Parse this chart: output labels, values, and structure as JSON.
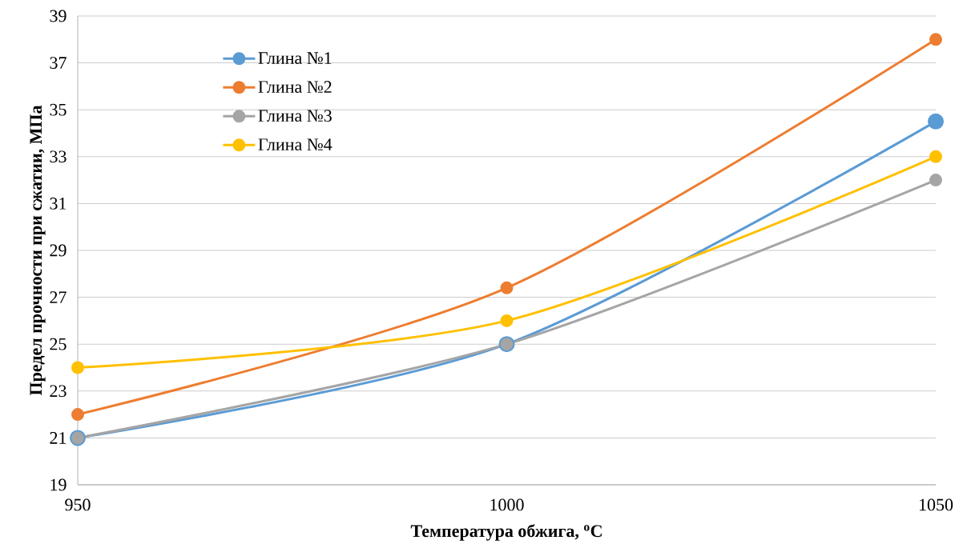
{
  "chart_data": {
    "type": "line",
    "xlabel": "Температура обжига, $^{o}$C",
    "ylabel": "Предел прочности при сжатии, МПа",
    "x": [
      950,
      1000,
      1050
    ],
    "xlim": [
      950,
      1050
    ],
    "xticks": [
      950,
      1000,
      1050
    ],
    "ylim": [
      19,
      39
    ],
    "yticks": [
      19,
      21,
      23,
      25,
      27,
      29,
      31,
      33,
      35,
      37,
      39
    ],
    "grid": "y",
    "legend": "top left",
    "marker": "circle",
    "line_style": "solid",
    "series": [
      {
        "name": "Глина №1",
        "color": "#5b9bd5",
        "values": [
          21,
          25,
          34.5
        ]
      },
      {
        "name": "Глина №2",
        "color": "#ed7d31",
        "values": [
          22,
          27.4,
          38
        ]
      },
      {
        "name": "Глина №3",
        "color": "#a5a5a5",
        "values": [
          21,
          25,
          32
        ]
      },
      {
        "name": "Глина №4",
        "color": "#ffc000",
        "values": [
          24,
          26,
          33
        ]
      }
    ]
  }
}
